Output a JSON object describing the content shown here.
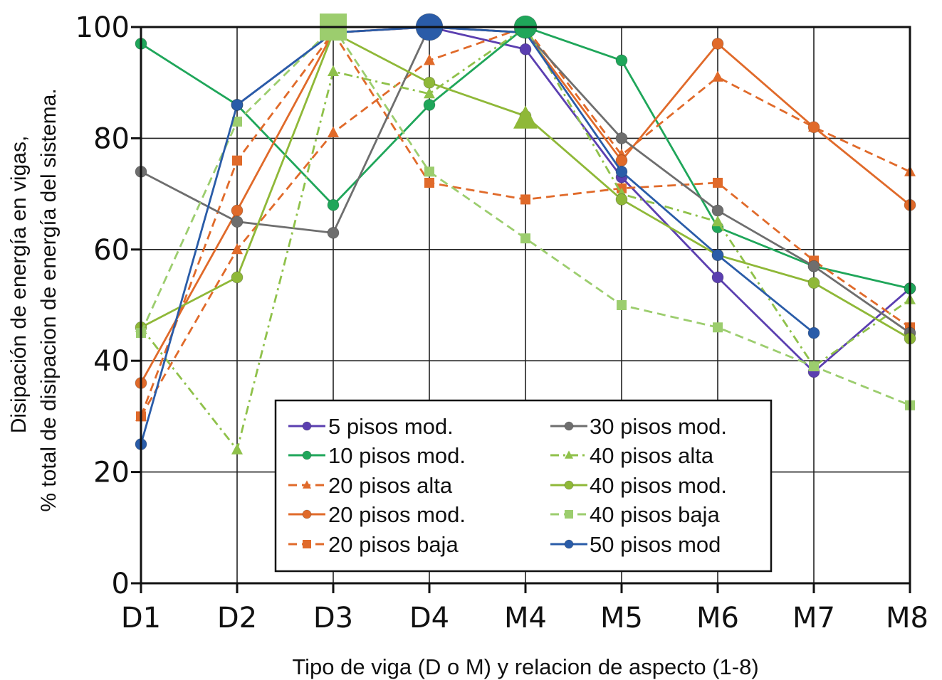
{
  "chart_data": {
    "type": "line",
    "title": "",
    "xlabel": "Tipo de viga (D o M) y relacion de aspecto (1-8)",
    "ylabel_line1": "Disipación de energía en vigas,",
    "ylabel_line2": "% total de disipacion de energía del sistema.",
    "categories": [
      "D1",
      "D2",
      "D3",
      "D4",
      "M4",
      "M5",
      "M6",
      "M7",
      "M8"
    ],
    "yticks": [
      "0",
      "20",
      "40",
      "60",
      "80",
      "100"
    ],
    "ylim": [
      0,
      100
    ],
    "grid": true,
    "legend_position": "bottom-center",
    "series": [
      {
        "name": "5 pisos mod.",
        "color": "#5b3fb0",
        "dash": "solid",
        "marker": "circle",
        "values": [
          null,
          86,
          99,
          100,
          96,
          73,
          55,
          38,
          53
        ]
      },
      {
        "name": "10 pisos mod.",
        "color": "#1fa65a",
        "dash": "solid",
        "marker": "circle",
        "values": [
          97,
          86,
          68,
          86,
          100,
          94,
          64,
          57,
          53
        ]
      },
      {
        "name": "20 pisos alta",
        "color": "#e06a2a",
        "dash": "dashed",
        "marker": "triangle",
        "values": [
          30,
          60,
          81,
          94,
          100,
          77,
          91,
          82,
          74
        ]
      },
      {
        "name": "20 pisos mod.",
        "color": "#e06a2a",
        "dash": "solid",
        "marker": "circle",
        "values": [
          36,
          67,
          99,
          100,
          99,
          76,
          97,
          82,
          68
        ]
      },
      {
        "name": "20 pisos baja",
        "color": "#e06a2a",
        "dash": "dashed",
        "marker": "square",
        "values": [
          30,
          76,
          99,
          72,
          69,
          71,
          72,
          58,
          46
        ]
      },
      {
        "name": "30 pisos mod.",
        "color": "#6e6e6e",
        "dash": "solid",
        "marker": "circle",
        "values": [
          74,
          65,
          63,
          100,
          99,
          80,
          67,
          57,
          45
        ]
      },
      {
        "name": "40 pisos alta",
        "color": "#8fc14a",
        "dash": "dashdot",
        "marker": "triangle",
        "values": [
          46,
          24,
          92,
          88,
          100,
          70,
          65,
          39,
          51
        ]
      },
      {
        "name": "40 pisos mod.",
        "color": "#8fb838",
        "dash": "solid",
        "marker": "circle",
        "values": [
          46,
          55,
          99,
          90,
          84,
          69,
          59,
          54,
          44
        ]
      },
      {
        "name": "40 pisos baja",
        "color": "#9ccd6e",
        "dash": "dashed",
        "marker": "square",
        "values": [
          45,
          83,
          100,
          74,
          62,
          50,
          46,
          39,
          32
        ]
      },
      {
        "name": "50 pisos mod",
        "color": "#2a5ca8",
        "dash": "solid",
        "marker": "circle",
        "values": [
          25,
          86,
          99,
          100,
          99,
          74,
          59,
          45,
          null
        ]
      }
    ]
  }
}
